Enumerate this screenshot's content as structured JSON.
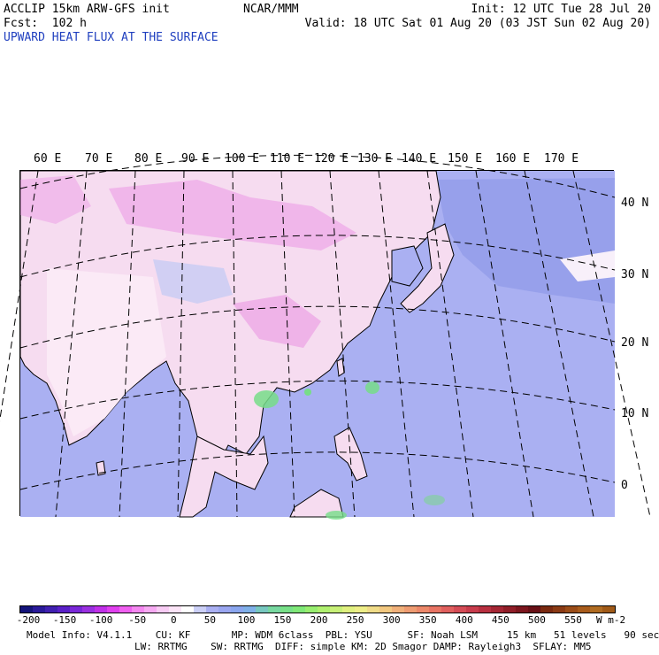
{
  "header": {
    "model": "ACCLIP 15km ARW-GFS init",
    "forecast": "Fcst:  102 h",
    "center": "NCAR/MMM",
    "init": "Init: 12 UTC Tue 28 Jul 20",
    "valid": "Valid: 18 UTC Sat 01 Aug 20 (03 JST Sun 02 Aug 20)",
    "field": "UPWARD HEAT FLUX AT THE SURFACE"
  },
  "map": {
    "lon_labels": [
      "60 E",
      "70 E",
      "80 E",
      "90 E",
      "100 E",
      "110 E",
      "120 E",
      "130 E",
      "140 E",
      "150 E",
      "160 E",
      "170 E"
    ],
    "lat_labels": [
      "40 N",
      "30 N",
      "20 N",
      "10 N",
      "0"
    ],
    "ocean_color": "#aab0f2",
    "land_color": "#f6dcf0",
    "high_flux_color": "#dd66dd",
    "positive_color": "#77dd88"
  },
  "colorbar": {
    "ticks": [
      "-200",
      "-150",
      "-100",
      "-50",
      "0",
      "50",
      "100",
      "150",
      "200",
      "250",
      "300",
      "350",
      "400",
      "450",
      "500",
      "550"
    ],
    "unit": "W m-2",
    "colors": [
      "#14147a",
      "#2a1a9a",
      "#4020b0",
      "#5a20c8",
      "#7a28d8",
      "#9a30e0",
      "#c030e8",
      "#e040ee",
      "#f060f0",
      "#f488f0",
      "#f6aaf2",
      "#f8ccf4",
      "#fbe4f7",
      "#ffffff",
      "#ccd0f6",
      "#aab0f2",
      "#9aa6f0",
      "#8aa6ee",
      "#7fb0e8",
      "#78c8c0",
      "#78d8a0",
      "#78e088",
      "#80e878",
      "#98ee70",
      "#b0f070",
      "#c8f078",
      "#e0f080",
      "#eeee88",
      "#f0dc88",
      "#f2c880",
      "#f0b07a",
      "#ee9c72",
      "#ec886a",
      "#e87464",
      "#e0605e",
      "#d44c56",
      "#c83c4c",
      "#b83040",
      "#a42634",
      "#901e28",
      "#7c161e",
      "#681016",
      "#7a2a10",
      "#8a3a14",
      "#9a4c18",
      "#a85c1c",
      "#b06c22",
      "#a05a18"
    ]
  },
  "info": {
    "line1": "Model Info: V4.1.1    CU: KF       MP: WDM 6class  PBL: YSU      SF: Noah LSM     15 km   51 levels   90 sec",
    "line2": "LW: RRTMG    SW: RRTMG  DIFF: simple KM: 2D Smagor DAMP: Rayleigh3  SFLAY: MM5"
  }
}
